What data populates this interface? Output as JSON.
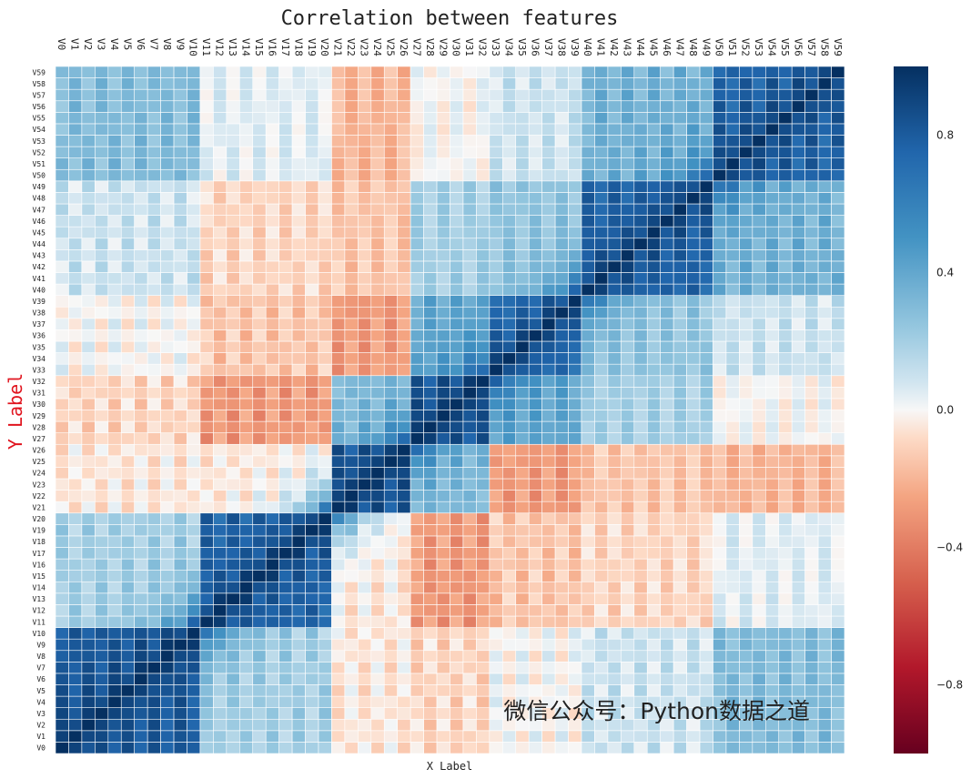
{
  "chart_data": {
    "type": "heatmap",
    "title": "Correlation between features",
    "xlabel": "X Label",
    "ylabel": "Y Label",
    "feature_count": 60,
    "feature_prefix": "V",
    "categories": [
      "V0",
      "V1",
      "V2",
      "V3",
      "V4",
      "V5",
      "V6",
      "V7",
      "V8",
      "V9",
      "V10",
      "V11",
      "V12",
      "V13",
      "V14",
      "V15",
      "V16",
      "V17",
      "V18",
      "V19",
      "V20",
      "V21",
      "V22",
      "V23",
      "V24",
      "V25",
      "V26",
      "V27",
      "V28",
      "V29",
      "V30",
      "V31",
      "V32",
      "V33",
      "V34",
      "V35",
      "V36",
      "V37",
      "V38",
      "V39",
      "V40",
      "V41",
      "V42",
      "V43",
      "V44",
      "V45",
      "V46",
      "V47",
      "V48",
      "V49",
      "V50",
      "V51",
      "V52",
      "V53",
      "V54",
      "V55",
      "V56",
      "V57",
      "V58",
      "V59"
    ],
    "value_range": [
      -1,
      1
    ],
    "colormap": "RdBu",
    "colorbar": {
      "ticks": [
        0.8,
        0.4,
        0.0,
        -0.4,
        -0.8
      ],
      "tick_labels": [
        "0.8",
        "0.4",
        "0.0",
        "−0.4",
        "−0.8"
      ]
    },
    "grid_lines": true,
    "grid_color": "#ffffff",
    "y_order": "bottom-to-top",
    "annotation_text": "微信公众号：Python数据之道"
  }
}
